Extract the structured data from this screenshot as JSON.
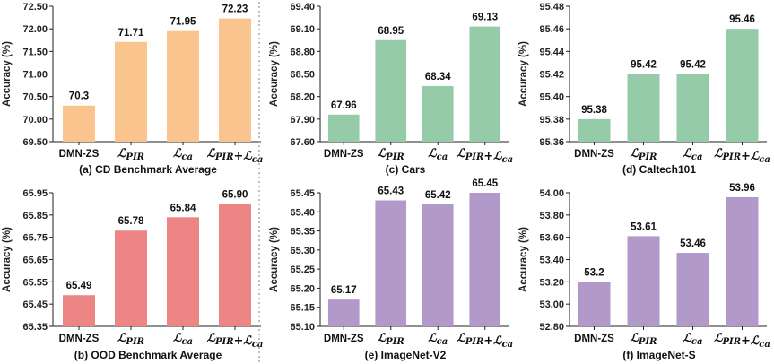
{
  "chart_data": [
    {
      "type": "bar",
      "caption": "(a)  CD Benchmark Average",
      "ylabel": "Accuracy (%)",
      "ylim": [
        69.5,
        72.5
      ],
      "yticks": [
        "69.50",
        "70.00",
        "70.50",
        "71.00",
        "71.50",
        "72.00",
        "72.50"
      ],
      "categories": [
        "DMN-ZS",
        "L_PIR",
        "L_ca",
        "L_PIR+L_ca"
      ],
      "values": [
        70.3,
        71.71,
        71.95,
        72.23
      ],
      "labels": [
        "70.3",
        "71.71",
        "71.95",
        "72.23"
      ],
      "color": "#fac48f"
    },
    {
      "type": "bar",
      "caption": "(c) Cars",
      "ylabel": "Accuracy (%)",
      "ylim": [
        67.6,
        69.4
      ],
      "yticks": [
        "67.60",
        "67.90",
        "68.20",
        "68.50",
        "68.80",
        "69.10",
        "69.40"
      ],
      "categories": [
        "DMN-ZS",
        "L_PIR",
        "L_ca",
        "L_PIR+L_ca"
      ],
      "values": [
        67.96,
        68.95,
        68.34,
        69.13
      ],
      "labels": [
        "67.96",
        "68.95",
        "68.34",
        "69.13"
      ],
      "color": "#96cbaa"
    },
    {
      "type": "bar",
      "caption": "(d) Caltech101",
      "ylabel": "Accuracy (%)",
      "ylim": [
        95.36,
        95.48
      ],
      "yticks": [
        "95.36",
        "95.38",
        "95.40",
        "95.42",
        "95.44",
        "95.46",
        "95.48"
      ],
      "categories": [
        "DMN-ZS",
        "L_PIR",
        "L_ca",
        "L_PIR+L_ca"
      ],
      "values": [
        95.38,
        95.42,
        95.42,
        95.46
      ],
      "labels": [
        "95.38",
        "95.42",
        "95.42",
        "95.46"
      ],
      "color": "#96cbaa"
    },
    {
      "type": "bar",
      "caption": "(b)  OOD Benchmark Average",
      "ylabel": "Accuracy (%)",
      "ylim": [
        65.35,
        65.95
      ],
      "yticks": [
        "65.35",
        "65.45",
        "65.55",
        "65.65",
        "65.75",
        "65.85",
        "65.95"
      ],
      "categories": [
        "DMN-ZS",
        "L_PIR",
        "L_ca",
        "L_PIR+L_ca"
      ],
      "values": [
        65.49,
        65.78,
        65.84,
        65.9
      ],
      "labels": [
        "65.49",
        "65.78",
        "65.84",
        "65.90"
      ],
      "color": "#ec8583"
    },
    {
      "type": "bar",
      "caption": "(e) ImageNet-V2",
      "ylabel": "Accuracy (%)",
      "ylim": [
        65.1,
        65.45
      ],
      "yticks": [
        "65.10",
        "65.15",
        "65.20",
        "65.25",
        "65.30",
        "65.35",
        "65.40",
        "65.45"
      ],
      "categories": [
        "DMN-ZS",
        "L_PIR",
        "L_ca",
        "L_PIR+L_ca"
      ],
      "values": [
        65.17,
        65.43,
        65.42,
        65.45
      ],
      "labels": [
        "65.17",
        "65.43",
        "65.42",
        "65.45"
      ],
      "color": "#b199c9"
    },
    {
      "type": "bar",
      "caption": "(f) ImageNet-S",
      "ylabel": "Accuracy (%)",
      "ylim": [
        52.8,
        54.0
      ],
      "yticks": [
        "52.80",
        "53.00",
        "53.20",
        "53.40",
        "53.60",
        "53.80",
        "54.00"
      ],
      "categories": [
        "DMN-ZS",
        "L_PIR",
        "L_ca",
        "L_PIR+L_ca"
      ],
      "values": [
        53.2,
        53.61,
        53.46,
        53.96
      ],
      "labels": [
        "53.2",
        "53.61",
        "53.46",
        "53.96"
      ],
      "color": "#b199c9"
    }
  ],
  "divider_color": "#aaaaaa",
  "axis_color": "#222222"
}
